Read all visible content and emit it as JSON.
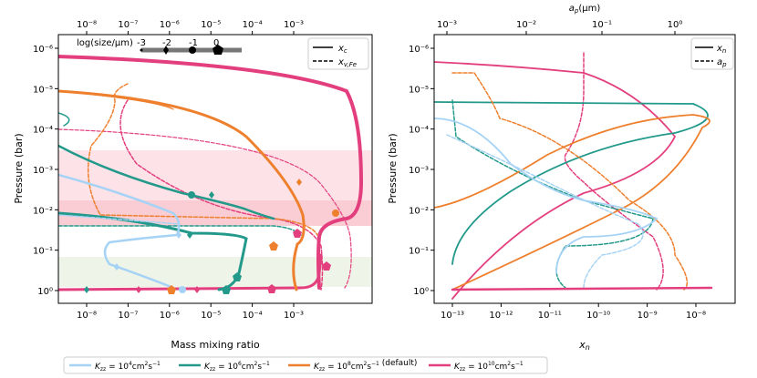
{
  "colors": {
    "k4": "#a6d3f5",
    "k6": "#22998a",
    "k8": "#ee7f2d",
    "k10": "#e33f7e",
    "band_pink": "#f9c4cc",
    "band_green": "#d8e6c9"
  },
  "chart_data": [
    {
      "type": "line",
      "xscale": "log",
      "yscale": "log",
      "y_inverted": true,
      "xlabel": "Mass mixing ratio",
      "ylabel": "Pressure (bar)",
      "xlim": [
        3e-09,
        0.003
      ],
      "ylim": [
        2,
        5e-07
      ],
      "x_ticks": [
        "10⁻⁸",
        "10⁻⁷",
        "10⁻⁶",
        "10⁻⁵",
        "10⁻⁴",
        "10⁻³"
      ],
      "top_x_ticks": [
        "10⁻⁸",
        "10⁻⁷",
        "10⁻⁶",
        "10⁻⁵",
        "10⁻⁴",
        "10⁻³"
      ],
      "y_ticks": [
        "10⁻⁶",
        "10⁻⁵",
        "10⁻⁴",
        "10⁻³",
        "10⁻²",
        "10⁻¹",
        "10⁰"
      ],
      "size_label": "log(size/μm)",
      "size_values": [
        "-3",
        "-2",
        "-1",
        "0"
      ],
      "legend": [
        {
          "label": "x_c",
          "style": "solid"
        },
        {
          "label": "x_v,Fe",
          "style": "dashed"
        }
      ],
      "series": [
        {
          "key": "k4",
          "condensate": [
            [
              0.0027,
              1.1
            ],
            [
              0.0005,
              1.1
            ],
            [
              0.0001,
              1.1
            ],
            [
              1e-05,
              1.1
            ],
            [
              1e-06,
              1.1
            ],
            [
              1e-07,
              1.1
            ],
            [
              1e-08,
              1.1
            ]
          ],
          "vapor": [
            [
              0.0027,
              1.1
            ],
            [
              0.0006,
              1.2
            ]
          ]
        },
        {
          "key": "k6",
          "condensate": [
            [
              0.0027,
              1.1
            ],
            [
              1e-05,
              1.1
            ],
            [
              2e-06,
              0.9
            ],
            [
              4e-07,
              0.7
            ],
            [
              3e-07,
              0.4
            ],
            [
              4e-07,
              0.2
            ],
            [
              4e-07,
              0.08
            ],
            [
              4e-07,
              0.04
            ],
            [
              2e-06,
              0.03
            ]
          ],
          "vapor": [
            [
              2e-06,
              0.03
            ]
          ]
        },
        {
          "key": "k8",
          "condensate": [
            [
              0.0027,
              1.1
            ],
            [
              4e-05,
              1.1
            ],
            [
              3e-05,
              0.95
            ],
            [
              2.5e-05,
              0.6
            ]
          ],
          "vapor": [
            [
              0.0007,
              0.015
            ],
            [
              0.005,
              0.01
            ]
          ]
        },
        {
          "key": "k10",
          "condensate": [
            [
              0.0027,
              1.1
            ],
            [
              0.0001,
              1.05
            ],
            [
              0.00012,
              0.6
            ],
            [
              0.00015,
              0.2
            ]
          ],
          "vapor": [
            [
              0.0007,
              0.02
            ]
          ]
        }
      ]
    },
    {
      "type": "line",
      "xscale": "log",
      "yscale": "log",
      "y_inverted": true,
      "xlabel": "x_n",
      "ylabel": "Pressure (bar)",
      "top_xlabel": "a_p(μm)",
      "xlim": [
        3e-14,
        8e-08
      ],
      "ylim": [
        2,
        5e-07
      ],
      "x_ticks": [
        "10⁻¹³",
        "10⁻¹²",
        "10⁻¹¹",
        "10⁻¹⁰",
        "10⁻⁹",
        "10⁻⁸"
      ],
      "top_x_ticks": [
        "10⁻³",
        "10⁻²",
        "10⁻¹",
        "10⁰"
      ],
      "y_ticks": [
        "10⁻⁶",
        "10⁻⁵",
        "10⁻⁴",
        "10⁻³",
        "10⁻²",
        "10⁻¹",
        "10⁰"
      ],
      "legend": [
        {
          "label": "x_n",
          "style": "solid"
        },
        {
          "label": "a_p",
          "style": "dashed"
        }
      ]
    }
  ],
  "bottom_legend": [
    {
      "key": "k4",
      "text": "K_zz = 10⁴cm²s⁻¹"
    },
    {
      "key": "k6",
      "text": "K_zz = 10⁶cm²s⁻¹"
    },
    {
      "key": "k8",
      "text": "K_zz = 10⁸cm²s⁻¹ (default)"
    },
    {
      "key": "k10",
      "text": "K_zz = 10¹⁰cm²s⁻¹"
    }
  ]
}
